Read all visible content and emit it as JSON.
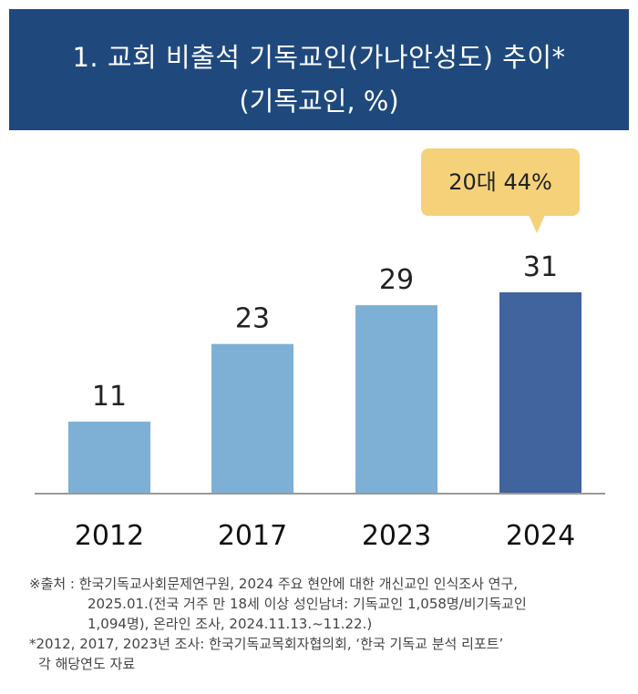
{
  "header": {
    "title_line1": "1. 교회 비출석 기독교인(가나안성도) 추이*",
    "title_line2": "(기독교인, %)"
  },
  "callout": {
    "text": "20대 44%"
  },
  "chart_data": {
    "type": "bar",
    "categories": [
      "2012",
      "2017",
      "2023",
      "2024"
    ],
    "values": [
      11,
      23,
      29,
      31
    ],
    "ylim": [
      0,
      40
    ],
    "colors": {
      "default": "#7eb0d5",
      "highlight": "#41639e",
      "baseline": "#999999"
    },
    "highlight_index": 3
  },
  "notes": {
    "source_line1": "※출처 : 한국기독교사회문제연구원, 2024 주요 현안에 대한 개신교인 인식조사 연구,",
    "source_line2": "2025.01.(전국 거주 만 18세 이상 성인남녀: 기독교인 1,058명/비기독교인",
    "source_line3": "1,094명), 온라인 조사, 2024.11.13.~11.22.)",
    "footnote_line1": "*2012, 2017, 2023년 조사: 한국기독교목회자협의회, ‘한국 기독교 분석 리포트’",
    "footnote_line2": "각 해당연도 자료"
  }
}
